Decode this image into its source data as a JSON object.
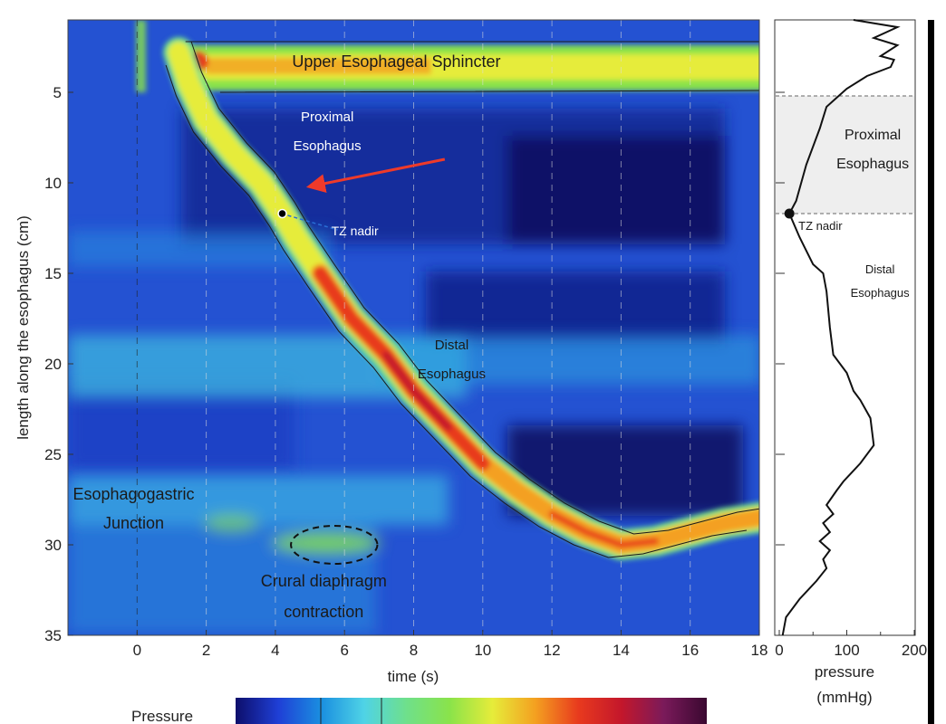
{
  "chart_data": [
    {
      "type": "heatmap",
      "xlabel": "time (s)",
      "ylabel": "length along the esophagus (cm)",
      "xlim": [
        -2,
        18
      ],
      "ylim": [
        35,
        1
      ],
      "x_ticks": [
        "0",
        "2",
        "4",
        "6",
        "8",
        "10",
        "12",
        "14",
        "16",
        "18"
      ],
      "y_ticks": [
        "5",
        "10",
        "15",
        "20",
        "25",
        "30",
        "35"
      ],
      "vertical_gridlines": [
        0,
        2,
        4,
        6,
        8,
        10,
        12,
        14,
        16,
        18
      ],
      "annotations": [
        {
          "text": "Upper Esophageal Sphincter",
          "x": 7.5,
          "y": 3.6,
          "style": "dark",
          "size": 18
        },
        {
          "text": "Proximal",
          "x": 5.5,
          "y": 6.6,
          "style": "light",
          "size": 15
        },
        {
          "text": "Esophagus",
          "x": 5.5,
          "y": 8.2,
          "style": "light",
          "size": 15
        },
        {
          "text": "TZ nadir",
          "x": 6.3,
          "y": 12.9,
          "style": "light",
          "size": 14
        },
        {
          "text": "Distal",
          "x": 9.1,
          "y": 19.2,
          "style": "dark",
          "size": 15
        },
        {
          "text": "Esophagus",
          "x": 9.1,
          "y": 20.8,
          "style": "dark",
          "size": 15
        },
        {
          "text": "Esophagogastric",
          "x": -0.1,
          "y": 27.5,
          "style": "dark",
          "size": 18
        },
        {
          "text": "Junction",
          "x": -0.1,
          "y": 29.1,
          "style": "dark",
          "size": 18
        },
        {
          "text": "Crural diaphragm",
          "x": 5.4,
          "y": 32.3,
          "style": "dark",
          "size": 18
        },
        {
          "text": "contraction",
          "x": 5.4,
          "y": 34.0,
          "style": "dark",
          "size": 18
        }
      ],
      "tz_nadir": {
        "x": 4.2,
        "y": 11.7
      },
      "arrow": {
        "from": [
          8.9,
          8.7
        ],
        "to": [
          5.0,
          10.2
        ],
        "color": "#ee3a2a"
      },
      "ellipse": {
        "cx": 5.7,
        "cy": 30.0,
        "rx": 1.25,
        "ry": 1.05
      },
      "wave_front": [
        [
          1.2,
          2.8
        ],
        [
          1.5,
          4.5
        ],
        [
          2.0,
          6.5
        ],
        [
          2.8,
          8.4
        ],
        [
          3.6,
          10.0
        ],
        [
          4.2,
          11.7
        ],
        [
          4.6,
          13.0
        ],
        [
          5.3,
          15.0
        ],
        [
          6.2,
          17.5
        ],
        [
          7.2,
          19.5
        ],
        [
          8.0,
          21.5
        ],
        [
          9.0,
          23.5
        ],
        [
          10.0,
          25.5
        ],
        [
          11.0,
          27.0
        ],
        [
          12.0,
          28.3
        ],
        [
          13.0,
          29.3
        ],
        [
          14.0,
          30.0
        ],
        [
          15.0,
          29.8
        ],
        [
          16.0,
          29.3
        ],
        [
          17.0,
          28.8
        ],
        [
          18.0,
          28.5
        ]
      ],
      "colorbar": {
        "label": "Pressure",
        "colors": [
          "#0d0e6b",
          "#1f3fd6",
          "#1a8fe0",
          "#4fd3e6",
          "#6fe08a",
          "#8ae34a",
          "#e6ec3a",
          "#f4a020",
          "#e83a1e",
          "#c4172b",
          "#7a1a5a",
          "#3a0830"
        ]
      }
    },
    {
      "type": "line",
      "xlabel": "pressure",
      "xlabel_unit": "(mmHg)",
      "xlim": [
        0,
        200
      ],
      "ylim": [
        35,
        1
      ],
      "x_ticks": [
        "0",
        "100",
        "200"
      ],
      "nadir": {
        "x": 15,
        "y": 11.7,
        "label": "TZ nadir"
      },
      "region_labels": [
        {
          "text": "Proximal",
          "x": 125,
          "y": 7.6
        },
        {
          "text": "Esophagus",
          "x": 125,
          "y": 9.2
        },
        {
          "text": "Distal",
          "x": 125,
          "y": 15.0
        },
        {
          "text": "Esophagus",
          "x": 125,
          "y": 16.3
        }
      ],
      "shaded_range": [
        5.2,
        11.7
      ],
      "x": [
        110,
        175,
        140,
        175,
        150,
        170,
        165,
        130,
        100,
        85,
        70,
        60,
        40,
        25,
        15,
        30,
        50,
        65,
        70,
        75,
        80,
        100,
        110,
        120,
        135,
        140,
        120,
        95,
        85,
        70,
        80,
        65,
        75,
        60,
        75,
        65,
        70,
        55,
        30,
        10,
        5
      ],
      "y": [
        1.0,
        1.4,
        2.0,
        2.4,
        3.0,
        3.2,
        3.6,
        4.1,
        4.8,
        5.3,
        5.8,
        7.0,
        9.0,
        11.0,
        11.7,
        13.0,
        14.5,
        15.0,
        16.0,
        18.0,
        19.5,
        20.5,
        21.5,
        22.0,
        23.0,
        24.5,
        25.5,
        26.5,
        27.0,
        27.8,
        28.3,
        28.8,
        29.3,
        29.8,
        30.3,
        30.8,
        31.3,
        32.0,
        33.0,
        34.0,
        35.0
      ]
    }
  ]
}
